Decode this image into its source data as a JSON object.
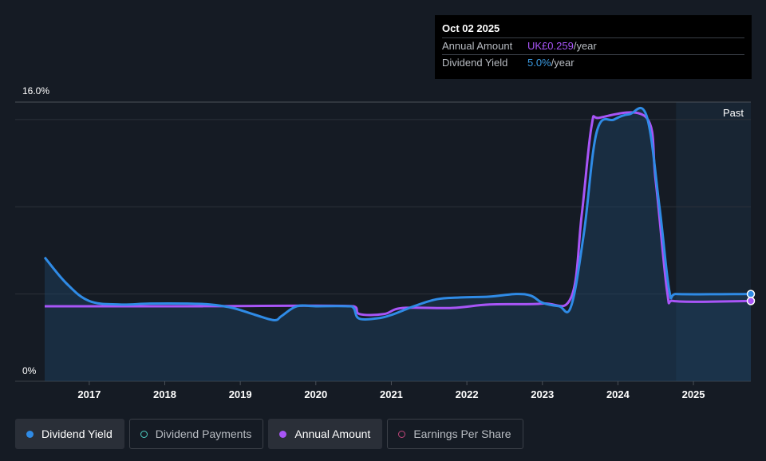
{
  "tooltip": {
    "date": "Oct 02 2025",
    "rows": [
      {
        "label": "Annual Amount",
        "value": "UK£0.259",
        "unit": "/year",
        "color": "#a855f7"
      },
      {
        "label": "Dividend Yield",
        "value": "5.0%",
        "unit": "/year",
        "color": "#3b9ae1"
      }
    ]
  },
  "past_label": "Past",
  "legend": [
    {
      "label": "Dividend Yield",
      "color": "#2f8be6",
      "filled": true,
      "active": true
    },
    {
      "label": "Dividend Payments",
      "color": "#4fd1c5",
      "filled": false,
      "active": false
    },
    {
      "label": "Annual Amount",
      "color": "#a855f7",
      "filled": true,
      "active": true
    },
    {
      "label": "Earnings Per Share",
      "color": "#c0467a",
      "filled": false,
      "active": false
    }
  ],
  "chart_data": {
    "type": "line",
    "y_axis_labels": [
      "16.0%",
      "0%"
    ],
    "ylim": [
      0,
      16
    ],
    "x_ticks": [
      "2017",
      "2018",
      "2019",
      "2020",
      "2021",
      "2022",
      "2023",
      "2024",
      "2025"
    ],
    "xlim": [
      2016.41,
      2025.76
    ],
    "grid": true,
    "forecast_region_start": 2024.77,
    "series": [
      {
        "name": "Dividend Yield",
        "color": "#2f8be6",
        "points": [
          [
            2016.41,
            7.1
          ],
          [
            2016.7,
            5.6
          ],
          [
            2017.0,
            4.6
          ],
          [
            2017.4,
            4.4
          ],
          [
            2017.8,
            4.45
          ],
          [
            2018.3,
            4.45
          ],
          [
            2018.6,
            4.4
          ],
          [
            2018.9,
            4.2
          ],
          [
            2019.2,
            3.8
          ],
          [
            2019.45,
            3.5
          ],
          [
            2019.55,
            3.75
          ],
          [
            2019.75,
            4.3
          ],
          [
            2020.0,
            4.3
          ],
          [
            2020.4,
            4.3
          ],
          [
            2020.5,
            4.2
          ],
          [
            2020.57,
            3.6
          ],
          [
            2020.8,
            3.6
          ],
          [
            2021.0,
            3.8
          ],
          [
            2021.3,
            4.3
          ],
          [
            2021.6,
            4.7
          ],
          [
            2021.9,
            4.8
          ],
          [
            2022.3,
            4.85
          ],
          [
            2022.65,
            5.0
          ],
          [
            2022.85,
            4.9
          ],
          [
            2023.0,
            4.5
          ],
          [
            2023.22,
            4.3
          ],
          [
            2023.38,
            4.3
          ],
          [
            2023.55,
            8.5
          ],
          [
            2023.72,
            14.3
          ],
          [
            2023.95,
            15.0
          ],
          [
            2024.15,
            15.3
          ],
          [
            2024.38,
            15.2
          ],
          [
            2024.55,
            10.0
          ],
          [
            2024.68,
            5.2
          ],
          [
            2024.77,
            5.0
          ],
          [
            2025.76,
            5.0
          ]
        ]
      },
      {
        "name": "Annual Amount",
        "color": "#a855f7",
        "points": [
          [
            2016.41,
            4.3
          ],
          [
            2018.5,
            4.3
          ],
          [
            2020.5,
            4.3
          ],
          [
            2020.58,
            3.85
          ],
          [
            2020.9,
            3.85
          ],
          [
            2021.15,
            4.2
          ],
          [
            2021.8,
            4.2
          ],
          [
            2022.3,
            4.4
          ],
          [
            2023.0,
            4.45
          ],
          [
            2023.38,
            4.8
          ],
          [
            2023.52,
            9.5
          ],
          [
            2023.65,
            14.6
          ],
          [
            2023.75,
            15.1
          ],
          [
            2024.38,
            15.1
          ],
          [
            2024.5,
            11.5
          ],
          [
            2024.65,
            5.2
          ],
          [
            2024.73,
            4.6
          ],
          [
            2025.76,
            4.6
          ]
        ]
      }
    ]
  }
}
